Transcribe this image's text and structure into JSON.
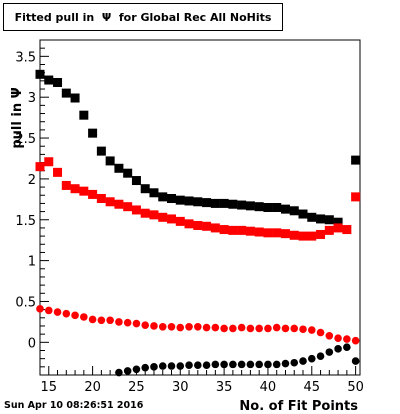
{
  "title": "Fitted pull in  Ψ  for Global Rec All NoHits",
  "timestamp": "Sun Apr 10 08:26:51 2016",
  "chart_data": {
    "type": "scatter",
    "title": "Fitted pull in  Ψ  for Global Rec All NoHits",
    "xlabel": "No. of Fit Points",
    "ylabel": "pull in Ψ",
    "xlim": [
      14,
      50.5
    ],
    "ylim": [
      -0.4,
      3.7
    ],
    "x_ticks": [
      15,
      20,
      25,
      30,
      35,
      40,
      45,
      50
    ],
    "x_tick_labels": [
      "15",
      "20",
      "25",
      "30",
      "35",
      "40",
      "45",
      "50"
    ],
    "y_ticks": [
      0,
      0.5,
      1,
      1.5,
      2,
      2.5,
      3,
      3.5
    ],
    "y_tick_labels": [
      "0",
      "0.5",
      "1",
      "1.5",
      "2",
      "2.5",
      "3",
      "3.5"
    ],
    "grid": false,
    "series": [
      {
        "color": "#000000",
        "marker": "square",
        "x": [
          14,
          15,
          16,
          17,
          18,
          19,
          20,
          21,
          22,
          23,
          24,
          25,
          26,
          27,
          28,
          29,
          30,
          31,
          32,
          33,
          34,
          35,
          36,
          37,
          38,
          39,
          40,
          41,
          42,
          43,
          44,
          45,
          46,
          47,
          48,
          50
        ],
        "y": [
          3.28,
          3.21,
          3.18,
          3.05,
          2.99,
          2.78,
          2.56,
          2.34,
          2.22,
          2.13,
          2.07,
          1.98,
          1.88,
          1.83,
          1.78,
          1.76,
          1.74,
          1.73,
          1.72,
          1.71,
          1.7,
          1.7,
          1.69,
          1.68,
          1.67,
          1.66,
          1.65,
          1.65,
          1.63,
          1.61,
          1.57,
          1.53,
          1.51,
          1.5,
          1.47,
          2.23
        ]
      },
      {
        "color": "#ff0000",
        "marker": "square",
        "x": [
          14,
          15,
          16,
          17,
          18,
          19,
          20,
          21,
          22,
          23,
          24,
          25,
          26,
          27,
          28,
          29,
          30,
          31,
          32,
          33,
          34,
          35,
          36,
          37,
          38,
          39,
          40,
          41,
          42,
          43,
          44,
          45,
          46,
          47,
          48,
          49,
          50
        ],
        "y": [
          2.15,
          2.21,
          2.08,
          1.92,
          1.88,
          1.85,
          1.81,
          1.76,
          1.72,
          1.69,
          1.66,
          1.62,
          1.58,
          1.56,
          1.53,
          1.51,
          1.48,
          1.45,
          1.43,
          1.42,
          1.4,
          1.38,
          1.37,
          1.37,
          1.36,
          1.35,
          1.34,
          1.34,
          1.33,
          1.31,
          1.3,
          1.3,
          1.32,
          1.37,
          1.4,
          1.38,
          1.78
        ]
      },
      {
        "color": "#ff0000",
        "marker": "circle",
        "x": [
          14,
          15,
          16,
          17,
          18,
          19,
          20,
          21,
          22,
          23,
          24,
          25,
          26,
          27,
          28,
          29,
          30,
          31,
          32,
          33,
          34,
          35,
          36,
          37,
          38,
          39,
          40,
          41,
          42,
          43,
          44,
          45,
          46,
          47,
          48,
          49,
          50
        ],
        "y": [
          0.41,
          0.39,
          0.37,
          0.35,
          0.33,
          0.31,
          0.28,
          0.27,
          0.27,
          0.25,
          0.24,
          0.23,
          0.21,
          0.2,
          0.19,
          0.19,
          0.18,
          0.19,
          0.19,
          0.18,
          0.18,
          0.17,
          0.17,
          0.18,
          0.17,
          0.17,
          0.17,
          0.18,
          0.17,
          0.17,
          0.16,
          0.15,
          0.12,
          0.08,
          0.05,
          0.04,
          0.02
        ]
      },
      {
        "color": "#000000",
        "marker": "circle",
        "x": [
          23,
          24,
          25,
          26,
          27,
          28,
          29,
          30,
          31,
          32,
          33,
          34,
          35,
          36,
          37,
          38,
          39,
          40,
          41,
          42,
          43,
          44,
          45,
          46,
          47,
          48,
          49,
          50
        ],
        "y": [
          -0.37,
          -0.35,
          -0.33,
          -0.31,
          -0.3,
          -0.29,
          -0.29,
          -0.29,
          -0.28,
          -0.28,
          -0.28,
          -0.27,
          -0.27,
          -0.27,
          -0.27,
          -0.27,
          -0.27,
          -0.27,
          -0.27,
          -0.26,
          -0.25,
          -0.23,
          -0.2,
          -0.17,
          -0.12,
          -0.08,
          -0.06,
          -0.23
        ]
      }
    ]
  }
}
